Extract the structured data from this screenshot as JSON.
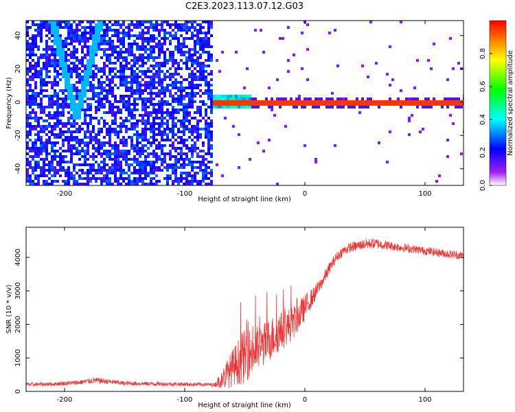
{
  "page": {
    "title": "C2E3.2023.113.07.12.G03"
  },
  "chart_data": [
    {
      "type": "heatmap",
      "title": "C2E3.2023.113.07.12.G03",
      "xlabel": "Height of straight line (km)",
      "ylabel": "Frequency (Hz)",
      "xlim": [
        -232,
        132
      ],
      "ylim": [
        -50,
        49
      ],
      "xticks": [
        -200,
        -100,
        0,
        100
      ],
      "yticks": [
        -40,
        -20,
        0,
        20,
        40
      ],
      "colorbar": {
        "label": "Normalized spectral amplitude",
        "range": [
          0,
          1
        ],
        "ticks": [
          0.0,
          0.2,
          0.4,
          0.6,
          0.8
        ],
        "colors": [
          "#ffffff",
          "#a020f0",
          "#0000ff",
          "#00ffff",
          "#00ff00",
          "#ffff00",
          "#ff0000"
        ]
      },
      "features": {
        "noise_region_x": [
          -232,
          -77
        ],
        "noise_amplitude": 0.25,
        "v_signature": {
          "vertex_x": -190,
          "vertex_y": -10,
          "left_top_x": -210,
          "right_top_x": -170,
          "top_y": 49,
          "amplitude": 0.35
        },
        "signal_line": {
          "x_start": -77,
          "x_end": 132,
          "frequency": 0,
          "amplitude": 0.95
        },
        "signal_onset_blob": {
          "x": [
            -77,
            -45
          ],
          "y": [
            -4,
            4
          ],
          "amplitude": 0.5
        },
        "grid": false
      }
    },
    {
      "type": "line",
      "xlabel": "Height of straight line (km)",
      "ylabel": "SNR (10 * v/v)",
      "xlim": [
        -232,
        132
      ],
      "ylim": [
        0,
        4900
      ],
      "xticks": [
        -200,
        -100,
        0,
        100
      ],
      "yticks": [
        0,
        1000,
        2000,
        3000,
        4000
      ],
      "color": "#ee3333",
      "grid": false,
      "x": [
        -232,
        -210,
        -190,
        -175,
        -165,
        -150,
        -130,
        -110,
        -90,
        -75,
        -65,
        -58,
        -52,
        -46,
        -40,
        -34,
        -28,
        -22,
        -16,
        -10,
        -4,
        2,
        8,
        14,
        20,
        26,
        32,
        38,
        44,
        50,
        56,
        62,
        70,
        80,
        90,
        100,
        110,
        120,
        132
      ],
      "y": [
        200,
        220,
        260,
        330,
        300,
        240,
        230,
        220,
        210,
        200,
        500,
        800,
        1000,
        1150,
        1250,
        1400,
        1600,
        1750,
        1900,
        2050,
        2300,
        2600,
        2900,
        3250,
        3650,
        4000,
        4200,
        4300,
        4350,
        4400,
        4420,
        4400,
        4350,
        4300,
        4250,
        4200,
        4150,
        4100,
        4050
      ],
      "spread": [
        120,
        120,
        140,
        180,
        160,
        130,
        120,
        120,
        110,
        110,
        900,
        1200,
        1600,
        1500,
        1400,
        1300,
        1300,
        1200,
        1100,
        1000,
        900,
        700,
        500,
        400,
        350,
        300,
        300,
        300,
        300,
        320,
        320,
        300,
        280,
        260,
        250,
        250,
        250,
        260,
        260
      ]
    }
  ]
}
